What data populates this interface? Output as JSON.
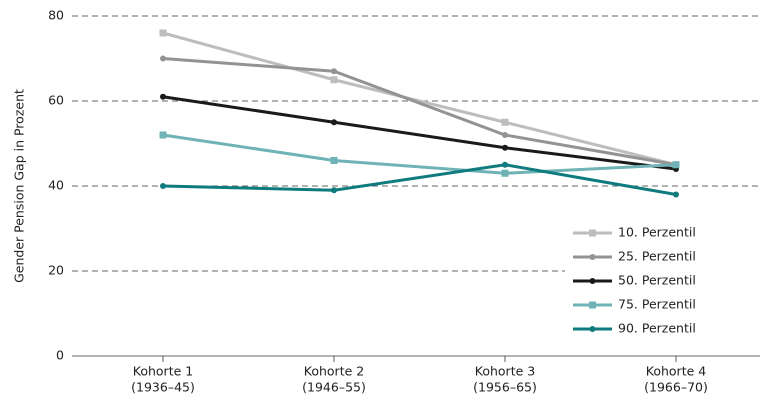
{
  "chart_data": {
    "type": "line",
    "y_label": "Gender Pension Gap in Prozent",
    "categories": [
      [
        "Kohorte 1",
        "(1936–45)"
      ],
      [
        "Kohorte 2",
        "(1946–55)"
      ],
      [
        "Kohorte 3",
        "(1956–65)"
      ],
      [
        "Kohorte 4",
        "(1966–70)"
      ]
    ],
    "series": [
      {
        "name": "10. Perzentil",
        "color": "#bdbdbe",
        "marker": "square",
        "values": [
          76,
          65,
          55,
          45
        ]
      },
      {
        "name": "25. Perzentil",
        "color": "#939393",
        "marker": "circle",
        "values": [
          70,
          67,
          52,
          45
        ]
      },
      {
        "name": "50. Perzentil",
        "color": "#1a1a1a",
        "marker": "circle",
        "values": [
          61,
          55,
          49,
          44
        ]
      },
      {
        "name": "75. Perzentil",
        "color": "#6fb3b6",
        "marker": "square",
        "values": [
          52,
          46,
          43,
          45
        ]
      },
      {
        "name": "90. Perzentil",
        "color": "#0f7b7f",
        "marker": "circle",
        "values": [
          40,
          39,
          45,
          38
        ]
      }
    ],
    "ylim": [
      0,
      80
    ],
    "yticks": [
      0,
      20,
      40,
      60,
      80
    ],
    "grid": true,
    "legend": "lower right"
  }
}
